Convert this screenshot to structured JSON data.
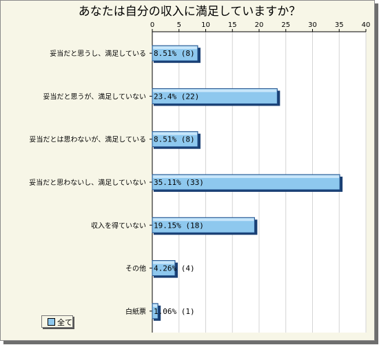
{
  "chart_data": {
    "type": "bar",
    "orientation": "horizontal",
    "title": "あなたは自分の収入に満足していますか？",
    "xlim": [
      0,
      40
    ],
    "xticks": [
      0,
      5,
      10,
      15,
      20,
      25,
      30,
      35,
      40
    ],
    "grid": true,
    "legend_position": "bottom-left",
    "categories": [
      "妥当だと思うし、満足している",
      "妥当だと思うが、満足していない",
      "妥当だとは思わないが、満足している",
      "妥当だと思わないし、満足していない",
      "収入を得ていない",
      "その他",
      "白紙票"
    ],
    "series": [
      {
        "name": "全て",
        "values": [
          8.51,
          23.4,
          8.51,
          35.11,
          19.15,
          4.26,
          1.06
        ],
        "counts": [
          8,
          22,
          8,
          33,
          18,
          4,
          1
        ],
        "labels": [
          "8.51% (8)",
          "23.4% (22)",
          "8.51% (8)",
          "35.11% (33)",
          "19.15% (18)",
          "4.26% (4)",
          "1.06% (1)"
        ]
      }
    ],
    "colors": {
      "bar": "#8ec8ee",
      "bar_shadow": "#1a3f73",
      "background": "#f7f6e7"
    }
  },
  "legend": {
    "label": "全て"
  }
}
